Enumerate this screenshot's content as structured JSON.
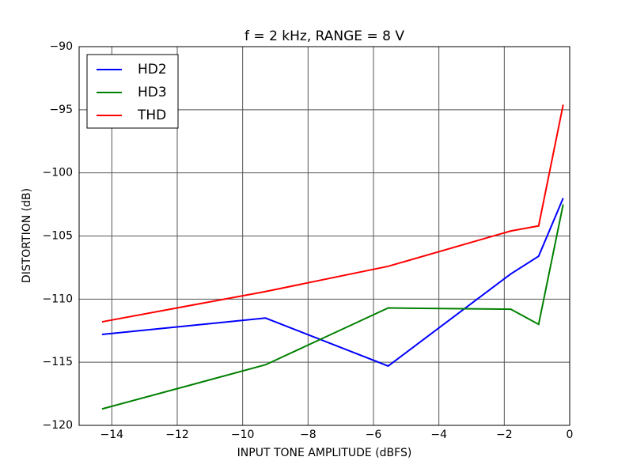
{
  "chart_data": {
    "type": "line",
    "title": "f = 2 kHz, RANGE = 8 V",
    "x_label": "INPUT TONE AMPLITUDE (dBFS)",
    "y_label": "DISTORTION (dB)",
    "x": [
      -14.3,
      -9.3,
      -5.55,
      -1.8,
      -0.95,
      -0.2
    ],
    "series": [
      {
        "name": "HD2",
        "color": "#0000ff",
        "values": [
          -112.8,
          -111.5,
          -115.3,
          -108.0,
          -106.6,
          -102.0
        ]
      },
      {
        "name": "HD3",
        "color": "#008000",
        "values": [
          -118.7,
          -115.2,
          -110.7,
          -110.8,
          -112.0,
          -102.5
        ]
      },
      {
        "name": "THD",
        "color": "#ff0000",
        "values": [
          -111.8,
          -109.4,
          -107.4,
          -104.6,
          -104.2,
          -94.6
        ]
      }
    ],
    "xlim": [
      -15,
      0
    ],
    "xticks": [
      {
        "value": -14,
        "label": "−14"
      },
      {
        "value": -12,
        "label": "−12"
      },
      {
        "value": -10,
        "label": "−10"
      },
      {
        "value": -8,
        "label": "−8"
      },
      {
        "value": -6,
        "label": "−6"
      },
      {
        "value": -4,
        "label": "−4"
      },
      {
        "value": -2,
        "label": "−2"
      },
      0
    ],
    "ylim": [
      -120,
      -90
    ],
    "yticks": [
      {
        "value": -120,
        "label": "−120"
      },
      {
        "value": -115,
        "label": "−115"
      },
      {
        "value": -110,
        "label": "−110"
      },
      {
        "value": -105,
        "label": "−105"
      },
      {
        "value": -100,
        "label": "−100"
      },
      {
        "value": -95,
        "label": "−95"
      },
      {
        "value": -90,
        "label": "−90"
      }
    ],
    "grid": true,
    "legend": "upper-left"
  }
}
